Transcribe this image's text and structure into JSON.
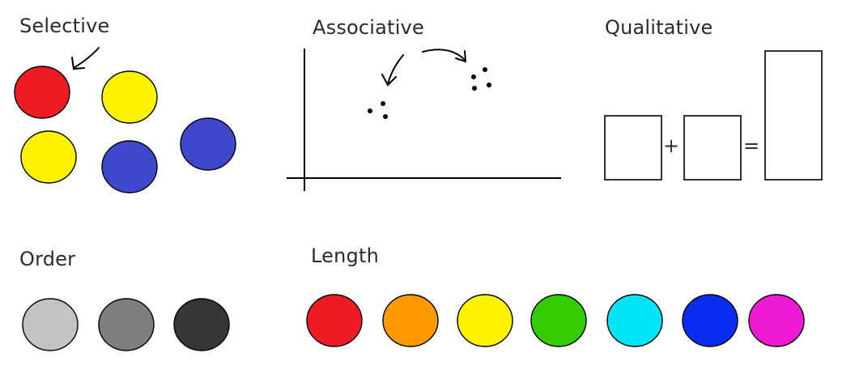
{
  "sections": {
    "selective": {
      "label": "Selective",
      "circles": [
        {
          "color": "#ed1c24"
        },
        {
          "color": "#fff200"
        },
        {
          "color": "#fff200"
        },
        {
          "color": "#3f48cc"
        },
        {
          "color": "#3f48cc"
        }
      ]
    },
    "associative": {
      "label": "Associative"
    },
    "qualitative": {
      "label": "Qualitative",
      "plus": "+",
      "equals": "="
    },
    "order": {
      "label": "Order",
      "circles": [
        {
          "color": "#c3c3c3"
        },
        {
          "color": "#7f7f7f"
        },
        {
          "color": "#363636"
        }
      ]
    },
    "length": {
      "label": "Length",
      "circles": [
        {
          "color": "#ed1c24"
        },
        {
          "color": "#ff9900"
        },
        {
          "color": "#fff200"
        },
        {
          "color": "#33cc00"
        },
        {
          "color": "#00e5f5"
        },
        {
          "color": "#0a2bf0"
        },
        {
          "color": "#f01ad6"
        }
      ]
    }
  }
}
